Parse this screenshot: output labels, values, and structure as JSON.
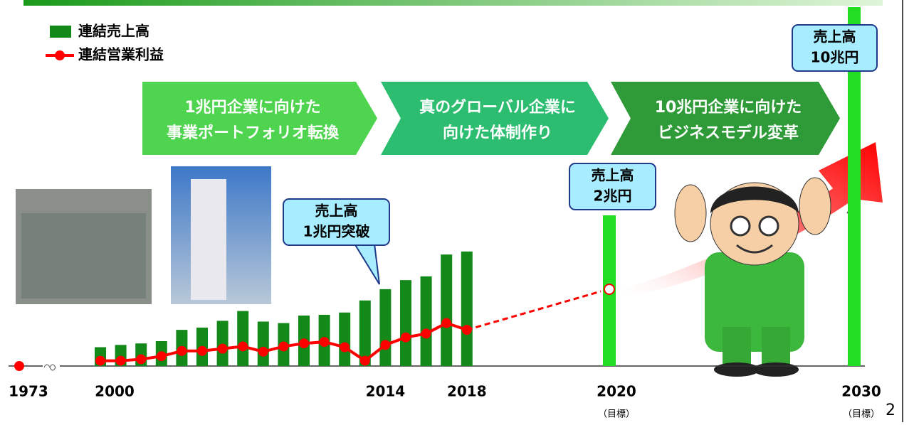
{
  "chart_data": {
    "type": "bar",
    "categories": [
      "1973",
      "2000",
      null,
      null,
      null,
      null,
      null,
      null,
      null,
      null,
      null,
      null,
      null,
      null,
      null,
      "2014",
      null,
      null,
      null,
      "2018"
    ],
    "series": [
      {
        "name": "連結売上高",
        "type": "bar",
        "color": "#13891a",
        "values": [
          null,
          0.25,
          0.28,
          0.3,
          0.33,
          0.48,
          0.51,
          0.6,
          0.73,
          0.59,
          0.57,
          0.67,
          0.68,
          0.71,
          0.87,
          1.02,
          1.14,
          1.19,
          1.48,
          1.52
        ]
      },
      {
        "name": "連結営業利益",
        "type": "line",
        "color": "#ff0000",
        "values": [
          0,
          0.07,
          0.07,
          0.09,
          0.13,
          0.2,
          0.2,
          0.23,
          0.26,
          0.19,
          0.26,
          0.3,
          0.32,
          0.25,
          0.07,
          0.28,
          0.38,
          0.43,
          0.57,
          0.48
        ]
      }
    ],
    "targets": {
      "categories": [
        "2020",
        "2030"
      ],
      "values": [
        2,
        10
      ],
      "notes": [
        "（目標）",
        "（目標）"
      ],
      "color": "#22dd22"
    },
    "ylim": [
      0,
      4
    ],
    "stages": [
      {
        "lines": [
          "1兆円企業に向けた",
          "事業ポートフォリオ転換"
        ],
        "color": "#4fd44f"
      },
      {
        "lines": [
          "真のグローバル企業に",
          "向けた体制作り"
        ],
        "color": "#2dbd70"
      },
      {
        "lines": [
          "10兆円企業に向けた",
          "ビジネスモデル変革"
        ],
        "color": "#2f9b38"
      }
    ],
    "callouts": [
      {
        "lines": [
          "売上高",
          "1兆円突破"
        ]
      },
      {
        "lines": [
          "売上高",
          "2兆円"
        ]
      },
      {
        "lines": [
          "売上高",
          "10兆円"
        ]
      }
    ],
    "page_number": "2"
  }
}
